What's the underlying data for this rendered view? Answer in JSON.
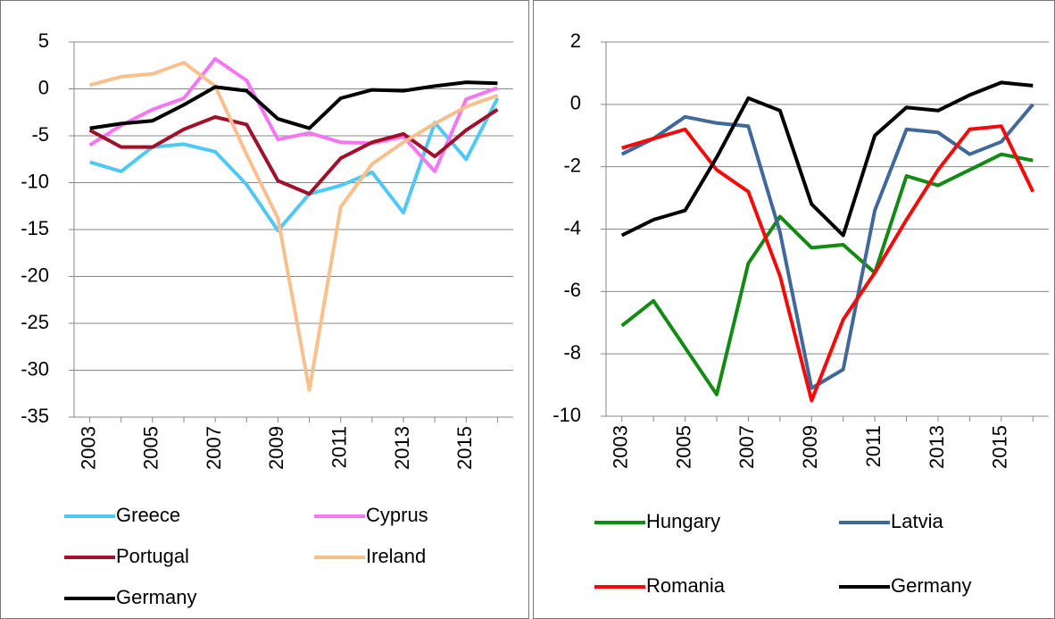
{
  "chart_data": [
    {
      "type": "line",
      "x": [
        2003,
        2004,
        2005,
        2006,
        2007,
        2008,
        2009,
        2010,
        2011,
        2012,
        2013,
        2014,
        2015,
        2016
      ],
      "xlim": [
        2002.5,
        2016.5
      ],
      "xticks": [
        2003,
        2005,
        2007,
        2009,
        2011,
        2013,
        2015
      ],
      "ylim": [
        -35,
        5
      ],
      "yticks": [
        -35,
        -30,
        -25,
        -20,
        -15,
        -10,
        -5,
        0,
        5
      ],
      "grid": true,
      "legend": "bottom",
      "series": [
        {
          "name": "Greece",
          "color": "#4fc8f5",
          "values": [
            -7.8,
            -8.8,
            -6.2,
            -5.9,
            -6.7,
            -10.2,
            -15.1,
            -11.2,
            -10.3,
            -8.9,
            -13.2,
            -3.6,
            -7.5,
            -1
          ]
        },
        {
          "name": "Cyprus",
          "color": "#f576f5",
          "values": [
            -6,
            -3.9,
            -2.2,
            -1,
            3.2,
            0.9,
            -5.4,
            -4.7,
            -5.7,
            -5.8,
            -5.1,
            -8.8,
            -1.1,
            0.1
          ]
        },
        {
          "name": "Portugal",
          "color": "#a0102a",
          "values": [
            -4.4,
            -6.2,
            -6.2,
            -4.3,
            -3,
            -3.8,
            -9.8,
            -11.2,
            -7.4,
            -5.7,
            -4.8,
            -7.2,
            -4.4,
            -2.2
          ]
        },
        {
          "name": "Ireland",
          "color": "#f9c08e",
          "values": [
            0.4,
            1.3,
            1.6,
            2.8,
            0.3,
            -7,
            -13.8,
            -32.1,
            -12.6,
            -8,
            -5.7,
            -3.7,
            -1.9,
            -0.7
          ]
        },
        {
          "name": "Germany",
          "color": "#000000",
          "values": [
            -4.2,
            -3.7,
            -3.4,
            -1.7,
            0.2,
            -0.2,
            -3.2,
            -4.2,
            -1,
            -0.1,
            -0.2,
            0.3,
            0.7,
            0.6
          ]
        }
      ]
    },
    {
      "type": "line",
      "x": [
        2003,
        2004,
        2005,
        2006,
        2007,
        2008,
        2009,
        2010,
        2011,
        2012,
        2013,
        2014,
        2015,
        2016
      ],
      "xlim": [
        2002.5,
        2016.5
      ],
      "xticks": [
        2003,
        2005,
        2007,
        2009,
        2011,
        2013,
        2015
      ],
      "ylim": [
        -10,
        2
      ],
      "yticks": [
        -10,
        -8,
        -6,
        -4,
        -2,
        0,
        2
      ],
      "grid": true,
      "legend": "bottom",
      "series": [
        {
          "name": "Hungary",
          "color": "#138a13",
          "values": [
            -7.1,
            -6.3,
            -7.8,
            -9.3,
            -5.1,
            -3.6,
            -4.6,
            -4.5,
            -5.4,
            -2.3,
            -2.6,
            -2.1,
            -1.6,
            -1.8
          ]
        },
        {
          "name": "Latvia",
          "color": "#41689a",
          "values": [
            -1.6,
            -1.1,
            -0.4,
            -0.6,
            -0.7,
            -4.1,
            -9.1,
            -8.5,
            -3.4,
            -0.8,
            -0.9,
            -1.6,
            -1.2,
            0
          ]
        },
        {
          "name": "Romania",
          "color": "#f50a0a",
          "values": [
            -1.4,
            -1.1,
            -0.8,
            -2.1,
            -2.8,
            -5.5,
            -9.5,
            -6.9,
            -5.4,
            -3.7,
            -2.1,
            -0.8,
            -0.7,
            -2.8
          ]
        },
        {
          "name": "Germany",
          "color": "#000000",
          "values": [
            -4.2,
            -3.7,
            -3.4,
            -1.7,
            0.2,
            -0.2,
            -3.2,
            -4.2,
            -1,
            -0.1,
            -0.2,
            0.3,
            0.7,
            0.6
          ]
        }
      ]
    }
  ]
}
